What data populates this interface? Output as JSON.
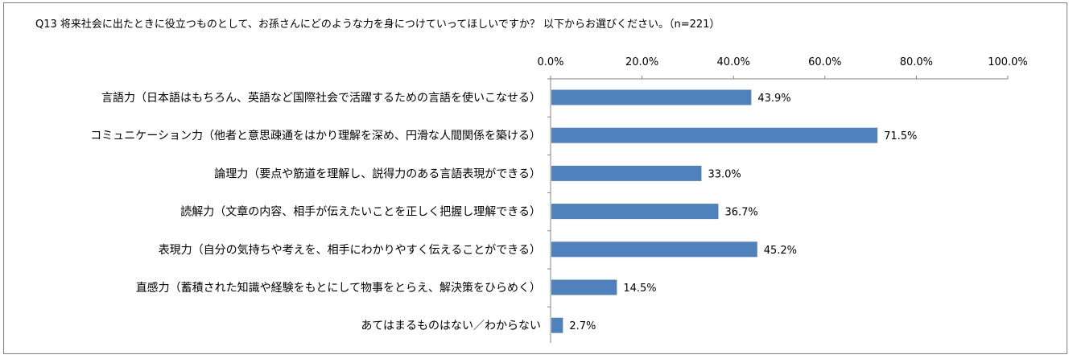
{
  "chart_data": {
    "type": "bar",
    "orientation": "horizontal",
    "title": "Q13 将来社会に出たときに役立つものとして、お孫さんにどのような力を身につけていってほしいですか？ 以下からお選びください。（n=221）",
    "categories": [
      "言語力（日本語はもちろん、英語など国際社会で活躍するための言語を使いこなせる）",
      "コミュニケーション力（他者と意思疎通をはかり理解を深め、円滑な人間関係を築ける）",
      "論理力（要点や筋道を理解し、説得力のある言語表現ができる）",
      "読解力（文章の内容、相手が伝えたいことを正しく把握し理解できる）",
      "表現力（自分の気持ちや考えを、相手にわかりやすく伝えることができる）",
      "直感力（蓄積された知識や経験をもとにして物事をとらえ、解決策をひらめく）",
      "あてはまるものはない／わからない"
    ],
    "values": [
      43.9,
      71.5,
      33.0,
      36.7,
      45.2,
      14.5,
      2.7
    ],
    "value_labels": [
      "43.9%",
      "71.5%",
      "33.0%",
      "36.7%",
      "45.2%",
      "14.5%",
      "2.7%"
    ],
    "x_ticks": [
      "0.0%",
      "20.0%",
      "40.0%",
      "60.0%",
      "80.0%",
      "100.0%"
    ],
    "x_tick_values": [
      0,
      20,
      40,
      60,
      80,
      100
    ],
    "xlim": [
      0,
      100
    ],
    "axis_position": "top",
    "grid": false,
    "legend": "none",
    "colors": {
      "bar": "#4f81bd",
      "axis": "#868686",
      "border": "#7f7f7f"
    }
  }
}
